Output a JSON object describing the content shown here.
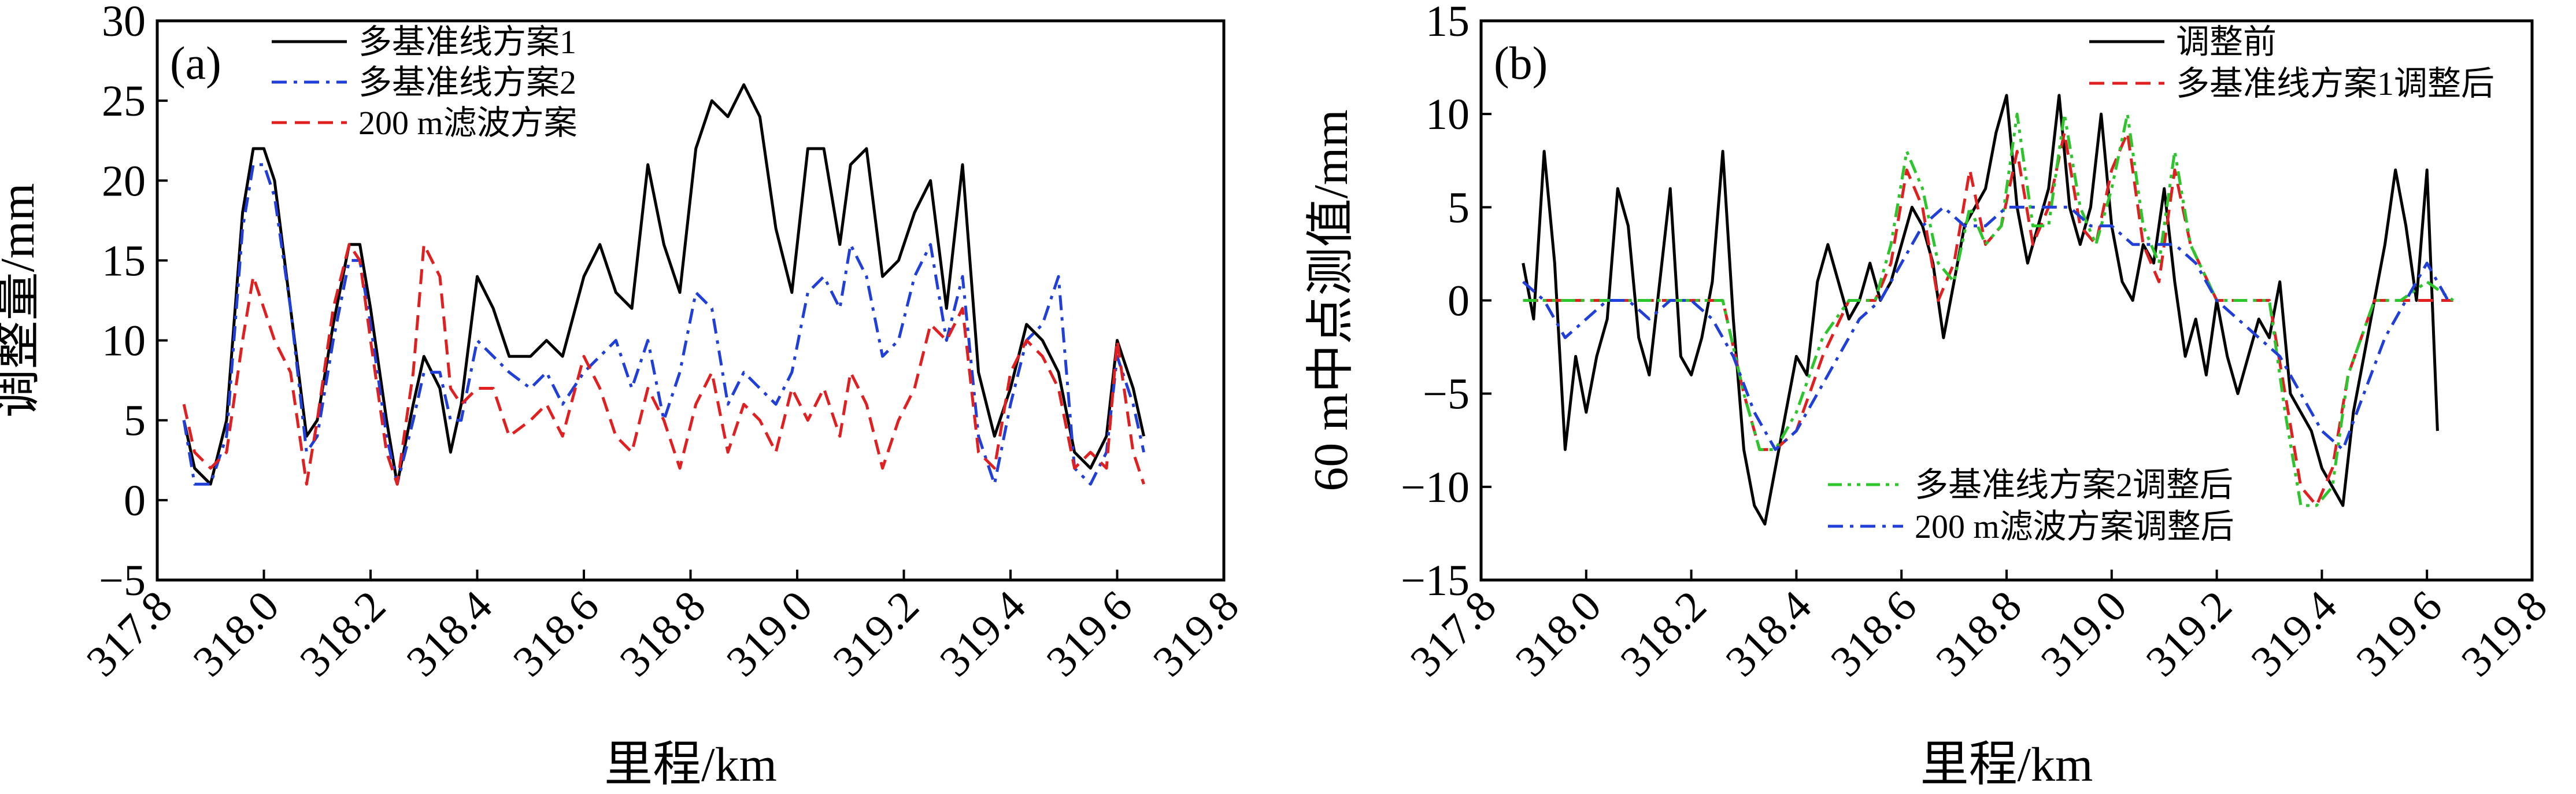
{
  "chart_data": [
    {
      "type": "line",
      "panel_label": "(a)",
      "xlabel": "里程/km",
      "ylabel": "调整量/mm",
      "xlim": [
        317.8,
        319.8
      ],
      "ylim": [
        -5,
        30
      ],
      "x_ticks": [
        "317.8",
        "318.0",
        "318.2",
        "318.4",
        "318.6",
        "318.8",
        "319.0",
        "319.2",
        "319.4",
        "319.6",
        "319.8"
      ],
      "y_ticks": [
        "−5",
        "0",
        "5",
        "10",
        "15",
        "20",
        "25",
        "30"
      ],
      "legend_position": "top-left",
      "series": [
        {
          "name": "多基准线方案1",
          "color": "#000000",
          "dash": "solid",
          "x": [
            317.85,
            317.87,
            317.9,
            317.93,
            317.96,
            317.98,
            318.0,
            318.02,
            318.05,
            318.08,
            318.1,
            318.13,
            318.16,
            318.18,
            318.2,
            318.23,
            318.25,
            318.28,
            318.3,
            318.33,
            318.35,
            318.37,
            318.4,
            318.43,
            318.46,
            318.5,
            318.53,
            318.56,
            318.6,
            318.63,
            318.66,
            318.69,
            318.72,
            318.75,
            318.78,
            318.81,
            318.84,
            318.87,
            318.9,
            318.93,
            318.96,
            318.99,
            319.02,
            319.05,
            319.08,
            319.1,
            319.13,
            319.16,
            319.19,
            319.22,
            319.25,
            319.28,
            319.31,
            319.34,
            319.37,
            319.4,
            319.43,
            319.46,
            319.49,
            319.52,
            319.55,
            319.58,
            319.6,
            319.63,
            319.65
          ],
          "y": [
            5,
            2,
            1,
            5,
            18,
            22,
            22,
            20,
            12,
            4,
            5,
            11,
            16,
            16,
            12,
            5,
            1,
            6,
            9,
            7,
            3,
            6,
            14,
            12,
            9,
            9,
            10,
            9,
            14,
            16,
            13,
            12,
            21,
            16,
            13,
            22,
            25,
            24,
            26,
            24,
            17,
            13,
            22,
            22,
            16,
            21,
            22,
            14,
            15,
            18,
            20,
            12,
            21,
            8,
            4,
            7,
            11,
            10,
            8,
            3,
            2,
            4,
            10,
            7,
            4
          ]
        },
        {
          "name": "多基准线方案2",
          "color": "#1f3fd8",
          "dash": "dashdot",
          "x": [
            317.85,
            317.87,
            317.9,
            317.93,
            317.96,
            317.98,
            318.0,
            318.02,
            318.05,
            318.08,
            318.1,
            318.13,
            318.16,
            318.18,
            318.2,
            318.23,
            318.25,
            318.28,
            318.3,
            318.33,
            318.35,
            318.37,
            318.4,
            318.43,
            318.46,
            318.5,
            318.53,
            318.56,
            318.6,
            318.63,
            318.66,
            318.69,
            318.72,
            318.75,
            318.78,
            318.81,
            318.84,
            318.87,
            318.9,
            318.93,
            318.96,
            318.99,
            319.02,
            319.05,
            319.08,
            319.1,
            319.13,
            319.16,
            319.19,
            319.22,
            319.25,
            319.28,
            319.31,
            319.34,
            319.37,
            319.4,
            319.43,
            319.46,
            319.49,
            319.52,
            319.55,
            319.58,
            319.6,
            319.63,
            319.65
          ],
          "y": [
            5,
            1,
            1,
            4,
            17,
            21,
            21,
            19,
            12,
            3,
            4,
            10,
            15,
            15,
            11,
            4,
            1,
            5,
            8,
            8,
            5,
            5,
            10,
            9,
            8,
            7,
            8,
            6,
            8,
            9,
            10,
            7,
            10,
            5,
            8,
            13,
            12,
            6,
            8,
            7,
            6,
            8,
            13,
            14,
            12,
            16,
            14,
            9,
            10,
            14,
            16,
            10,
            14,
            4,
            1,
            6,
            10,
            11,
            14,
            2,
            1,
            3,
            9,
            6,
            3
          ]
        },
        {
          "name": "200 m滤波方案",
          "color": "#e02020",
          "dash": "dashed",
          "x": [
            317.85,
            317.87,
            317.9,
            317.93,
            317.96,
            317.98,
            318.0,
            318.02,
            318.05,
            318.08,
            318.1,
            318.13,
            318.16,
            318.18,
            318.2,
            318.23,
            318.25,
            318.28,
            318.3,
            318.33,
            318.35,
            318.37,
            318.4,
            318.43,
            318.46,
            318.5,
            318.53,
            318.56,
            318.6,
            318.63,
            318.66,
            318.69,
            318.72,
            318.75,
            318.78,
            318.81,
            318.84,
            318.87,
            318.9,
            318.93,
            318.96,
            318.99,
            319.02,
            319.05,
            319.08,
            319.1,
            319.13,
            319.16,
            319.19,
            319.22,
            319.25,
            319.28,
            319.31,
            319.34,
            319.37,
            319.4,
            319.43,
            319.46,
            319.49,
            319.52,
            319.55,
            319.58,
            319.6,
            319.63,
            319.65
          ],
          "y": [
            6,
            3,
            2,
            3,
            10,
            14,
            12,
            10,
            8,
            1,
            5,
            12,
            16,
            15,
            10,
            3,
            1,
            8,
            16,
            14,
            7,
            6,
            7,
            7,
            4,
            5,
            6,
            4,
            9,
            7,
            4,
            3,
            7,
            5,
            2,
            6,
            8,
            3,
            6,
            5,
            3,
            7,
            5,
            7,
            4,
            8,
            6,
            2,
            5,
            7,
            11,
            10,
            12,
            3,
            2,
            8,
            10,
            9,
            7,
            2,
            3,
            2,
            10,
            3,
            1
          ]
        }
      ]
    },
    {
      "type": "line",
      "panel_label": "(b)",
      "xlabel": "里程/km",
      "ylabel": "60 m中点测值/mm",
      "xlim": [
        317.8,
        319.8
      ],
      "ylim": [
        -15,
        15
      ],
      "x_ticks": [
        "317.8",
        "318.0",
        "318.2",
        "318.4",
        "318.6",
        "318.8",
        "319.0",
        "319.2",
        "319.4",
        "319.6",
        "319.8"
      ],
      "y_ticks": [
        "−15",
        "−10",
        "−5",
        "0",
        "5",
        "10",
        "15"
      ],
      "legend_position": "top-right; bottom-center",
      "series": [
        {
          "name": "调整前",
          "color": "#000000",
          "dash": "solid",
          "x": [
            317.88,
            317.9,
            317.92,
            317.94,
            317.96,
            317.98,
            318.0,
            318.02,
            318.04,
            318.06,
            318.08,
            318.1,
            318.12,
            318.14,
            318.16,
            318.18,
            318.2,
            318.22,
            318.24,
            318.26,
            318.28,
            318.3,
            318.32,
            318.34,
            318.36,
            318.38,
            318.4,
            318.42,
            318.44,
            318.46,
            318.48,
            318.5,
            318.52,
            318.54,
            318.56,
            318.58,
            318.6,
            318.62,
            318.64,
            318.66,
            318.68,
            318.7,
            318.72,
            318.74,
            318.76,
            318.78,
            318.8,
            318.82,
            318.84,
            318.86,
            318.88,
            318.9,
            318.92,
            318.94,
            318.96,
            318.98,
            319.0,
            319.02,
            319.04,
            319.06,
            319.08,
            319.1,
            319.12,
            319.14,
            319.16,
            319.18,
            319.2,
            319.22,
            319.24,
            319.26,
            319.28,
            319.3,
            319.32,
            319.34,
            319.36,
            319.38,
            319.4,
            319.42,
            319.44,
            319.46,
            319.48,
            319.5,
            319.52,
            319.54,
            319.56,
            319.58,
            319.6,
            319.62
          ],
          "y": [
            2,
            -1,
            8,
            2,
            -8,
            -3,
            -6,
            -3,
            -1,
            6,
            4,
            -2,
            -4,
            1,
            6,
            -3,
            -4,
            -2,
            1,
            8,
            -1,
            -8,
            -11,
            -12,
            -9,
            -6,
            -3,
            -4,
            1,
            3,
            1,
            -1,
            0,
            2,
            0,
            1,
            3,
            5,
            4,
            2,
            -2,
            1,
            4,
            5,
            6,
            9,
            11,
            5,
            2,
            4,
            6,
            11,
            5,
            3,
            5,
            10,
            4,
            1,
            0,
            3,
            2,
            6,
            1,
            -3,
            -1,
            -4,
            0,
            -3,
            -5,
            -3,
            -1,
            -2,
            1,
            -5,
            -6,
            -7,
            -9,
            -10,
            -11,
            -6,
            -3,
            0,
            3,
            7,
            4,
            0,
            7,
            -7
          ]
        },
        {
          "name": "多基准线方案1调整后",
          "color": "#e02020",
          "dash": "dashed",
          "x": [
            317.88,
            318.0,
            318.1,
            318.2,
            318.26,
            318.3,
            318.33,
            318.36,
            318.4,
            318.45,
            318.5,
            318.55,
            318.58,
            318.61,
            318.64,
            318.67,
            318.7,
            318.73,
            318.76,
            318.79,
            318.82,
            318.85,
            318.88,
            318.91,
            318.94,
            318.97,
            319.0,
            319.03,
            319.06,
            319.09,
            319.12,
            319.15,
            319.2,
            319.25,
            319.3,
            319.33,
            319.36,
            319.39,
            319.42,
            319.45,
            319.5,
            319.55,
            319.6,
            319.65
          ],
          "y": [
            0,
            0,
            0,
            0,
            0,
            -5,
            -8,
            -8,
            -7,
            -3,
            0,
            0,
            2,
            7,
            5,
            0,
            2,
            7,
            3,
            4,
            8,
            3,
            5,
            9,
            4,
            3,
            7,
            9,
            3,
            1,
            7,
            3,
            0,
            0,
            0,
            -5,
            -10,
            -11,
            -9,
            -4,
            0,
            0,
            0,
            0
          ]
        },
        {
          "name": "多基准线方案2调整后",
          "color": "#2cc52c",
          "dash": "dashdotdot",
          "x": [
            317.88,
            318.0,
            318.1,
            318.2,
            318.26,
            318.3,
            318.33,
            318.36,
            318.4,
            318.45,
            318.5,
            318.55,
            318.58,
            318.61,
            318.64,
            318.67,
            318.7,
            318.73,
            318.76,
            318.79,
            318.82,
            318.85,
            318.88,
            318.91,
            318.94,
            318.97,
            319.0,
            319.03,
            319.06,
            319.09,
            319.12,
            319.15,
            319.2,
            319.25,
            319.3,
            319.33,
            319.36,
            319.39,
            319.42,
            319.45,
            319.5,
            319.55,
            319.6,
            319.65
          ],
          "y": [
            0,
            0,
            0,
            0,
            0,
            -5,
            -8,
            -8,
            -6,
            -2,
            0,
            0,
            3,
            8,
            6,
            2,
            1,
            5,
            3,
            4,
            10,
            4,
            4,
            10,
            5,
            3,
            6,
            10,
            4,
            2,
            8,
            3,
            0,
            0,
            0,
            -6,
            -11,
            -11,
            -10,
            -4,
            0,
            0,
            1,
            0
          ]
        },
        {
          "name": "200 m滤波方案调整后",
          "color": "#1f3fd8",
          "dash": "dashdot",
          "x": [
            317.88,
            317.92,
            317.96,
            318.0,
            318.04,
            318.08,
            318.12,
            318.16,
            318.2,
            318.24,
            318.28,
            318.32,
            318.36,
            318.4,
            318.44,
            318.48,
            318.52,
            318.56,
            318.6,
            318.64,
            318.68,
            318.72,
            318.76,
            318.8,
            318.84,
            318.88,
            318.92,
            318.96,
            319.0,
            319.04,
            319.08,
            319.12,
            319.16,
            319.2,
            319.24,
            319.28,
            319.32,
            319.36,
            319.4,
            319.44,
            319.48,
            319.52,
            319.56,
            319.6,
            319.64
          ],
          "y": [
            1,
            0,
            -2,
            -1,
            0,
            0,
            -1,
            0,
            0,
            -1,
            -3,
            -6,
            -8,
            -7,
            -5,
            -3,
            -1,
            0,
            2,
            4,
            5,
            4,
            4,
            5,
            5,
            5,
            5,
            4,
            4,
            3,
            3,
            3,
            2,
            0,
            -1,
            -2,
            -3,
            -5,
            -7,
            -8,
            -5,
            -2,
            0,
            2,
            0
          ]
        }
      ]
    }
  ]
}
